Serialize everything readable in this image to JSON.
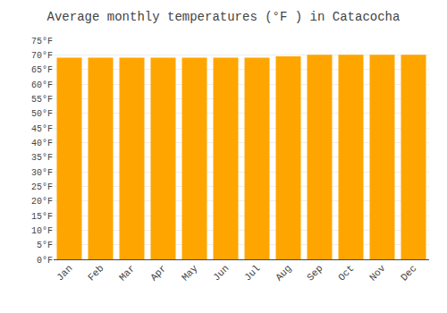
{
  "chart_data": {
    "type": "bar",
    "title": "Average monthly temperatures (°F ) in Catacocha",
    "categories": [
      "Jan",
      "Feb",
      "Mar",
      "Apr",
      "May",
      "Jun",
      "Jul",
      "Aug",
      "Sep",
      "Oct",
      "Nov",
      "Dec"
    ],
    "values": [
      69,
      69,
      69,
      69,
      69,
      69,
      69,
      69.5,
      70,
      70,
      70,
      70
    ],
    "color": "#FFA500",
    "ylim": [
      0,
      75
    ],
    "yticks": [
      {
        "value": 0,
        "label": "0°F"
      },
      {
        "value": 5,
        "label": "5°F"
      },
      {
        "value": 10,
        "label": "10°F"
      },
      {
        "value": 15,
        "label": "15°F"
      },
      {
        "value": 20,
        "label": "20°F"
      },
      {
        "value": 25,
        "label": "25°F"
      },
      {
        "value": 30,
        "label": "30°F"
      },
      {
        "value": 35,
        "label": "35°F"
      },
      {
        "value": 40,
        "label": "40°F"
      },
      {
        "value": 45,
        "label": "45°F"
      },
      {
        "value": 50,
        "label": "50°F"
      },
      {
        "value": 55,
        "label": "55°F"
      },
      {
        "value": 60,
        "label": "60°F"
      },
      {
        "value": 65,
        "label": "65°F"
      },
      {
        "value": 70,
        "label": "70°F"
      },
      {
        "value": 75,
        "label": "75°F"
      }
    ],
    "grid": true
  }
}
